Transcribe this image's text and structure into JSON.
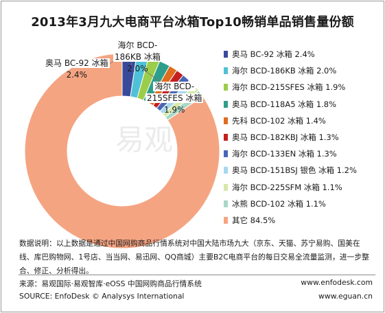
{
  "chart_data": {
    "type": "donut",
    "title": "2013年3月九大电商平台冰箱Top10畅销单品销售量份额",
    "series": [
      {
        "name": "奥马 BC-92 冰箱",
        "value": 2.4,
        "color": "#3a4a9a"
      },
      {
        "name": "海尔 BCD-186KB 冰箱",
        "value": 2.0,
        "color": "#4ec1d6"
      },
      {
        "name": "海尔 BCD-215SFES 冰箱",
        "value": 1.9,
        "color": "#9ccd4a"
      },
      {
        "name": "奥马 BCD-118A5 冰箱",
        "value": 1.8,
        "color": "#2e9e8a"
      },
      {
        "name": "先科 BCD-102 冰箱",
        "value": 1.4,
        "color": "#e06c1e"
      },
      {
        "name": "奥马 BCD-182KBJ 冰箱",
        "value": 1.3,
        "color": "#c3201e"
      },
      {
        "name": "海尔 BCD-133EN 冰箱",
        "value": 1.3,
        "color": "#4a67b5"
      },
      {
        "name": "奥马 BCD-151BSJ 银色 冰箱",
        "value": 1.2,
        "color": "#a7d8ef"
      },
      {
        "name": "海尔 BCD-225SFM 冰箱",
        "value": 1.1,
        "color": "#d6e9a8"
      },
      {
        "name": "冰熊 BCD-102 冰箱",
        "value": 1.1,
        "color": "#a9d8c7"
      },
      {
        "name": "其它",
        "value": 84.5,
        "color": "#f5a482"
      }
    ],
    "legend_labels": [
      "奥马 BC-92 冰箱 2.4%",
      "海尔 BCD-186KB 冰箱 2.0%",
      "海尔 BCD-215SFES 冰箱 1.9%",
      "奥马 BCD-118A5 冰箱 1.8%",
      "先科 BCD-102 冰箱 1.4%",
      "奥马 BCD-182KBJ 冰箱 1.3%",
      "海尔 BCD-133EN 冰箱 1.3%",
      "奥马 BCD-151BSJ 银色 冰箱 1.2%",
      "海尔 BCD-225SFM 冰箱 1.1%",
      "冰熊 BCD-102 冰箱 1.1%",
      "其它  84.5%"
    ],
    "callouts": [
      {
        "name": "奥马 BC-92 冰箱",
        "value": "2.4%"
      },
      {
        "name": "海尔 BCD-186KB 冰箱",
        "value": "2.0%"
      },
      {
        "name": "海尔 BCD-215SFES 冰箱",
        "value": "1.9%"
      }
    ],
    "unit": "%",
    "legend_position": "right"
  },
  "callout_text": {
    "c0_name": "奥马 BC-92 冰箱",
    "c0_value": "2.4%",
    "c1_name_a": "海尔 BCD-",
    "c1_name_b": "186KB 冰箱",
    "c1_value": "2.0%",
    "c2_name_a": "海尔 BCD-",
    "c2_name_b": "215SFES 冰箱",
    "c2_value": "1.9%"
  },
  "watermark": "易观",
  "note": "数据说明：以上数据是通过中国网购商品行情系统对中国大陆市场九大（京东、天猫、苏宁易购、国美在线、库巴购物网、1号店、当当网、易迅网、QQ商城）主要B2C电商平台的每日交易全流量监测，进一步整合、修正、分析得出。",
  "source_cn": "来源：易观国际·易观智库·eOSS 中国网购商品行情系统",
  "source_en": "SOURCE: EnfoDesk © Analysys International",
  "url1": "www.enfodesk.com",
  "url2": "www.eguan.cn"
}
